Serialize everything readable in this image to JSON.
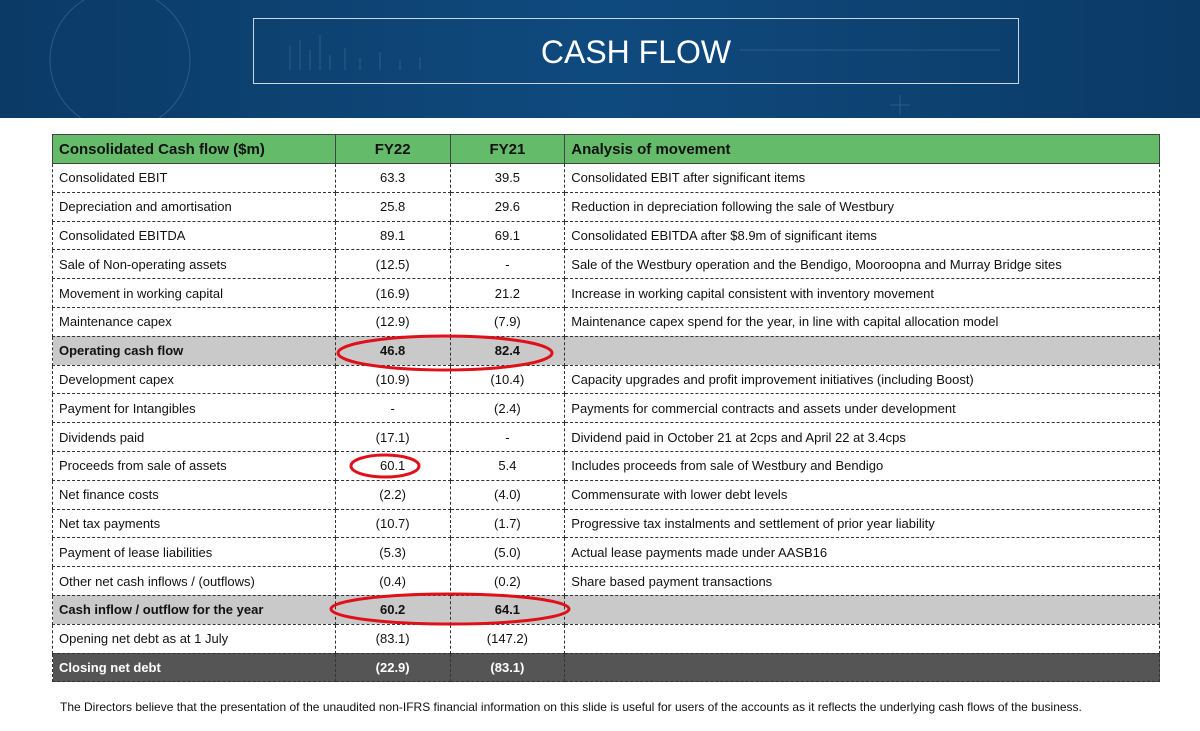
{
  "header": {
    "title": "CASH FLOW"
  },
  "table": {
    "columns": [
      "Consolidated Cash flow ($m)",
      "FY22",
      "FY21",
      "Analysis of movement"
    ],
    "rows": [
      [
        "Consolidated EBIT",
        "63.3",
        "39.5",
        "Consolidated EBIT after significant items"
      ],
      [
        "Depreciation and amortisation",
        "25.8",
        "29.6",
        "Reduction in depreciation following the sale of Westbury"
      ],
      [
        "Consolidated EBITDA",
        "89.1",
        "69.1",
        "Consolidated EBITDA after $8.9m of significant items"
      ],
      [
        "Sale of Non-operating assets",
        "(12.5)",
        "-",
        "Sale of the Westbury operation and the Bendigo, Mooroopna and Murray Bridge sites"
      ],
      [
        "Movement in working capital",
        "(16.9)",
        "21.2",
        "Increase in working capital consistent with inventory movement"
      ],
      [
        "Maintenance capex",
        "(12.9)",
        "(7.9)",
        "Maintenance capex spend for the year, in line with capital allocation model"
      ],
      [
        "Operating cash flow",
        "46.8",
        "82.4"
      ],
      [
        "Development capex",
        "(10.9)",
        "(10.4)",
        "Capacity upgrades and profit improvement initiatives (including Boost)"
      ],
      [
        "Payment for Intangibles",
        "-",
        "(2.4)",
        "Payments for commercial contracts and assets under development"
      ],
      [
        "Dividends paid",
        "(17.1)",
        "-",
        "Dividend paid in October 21 at 2cps and April 22 at 3.4cps"
      ],
      [
        "Proceeds from sale of assets",
        "60.1",
        "5.4",
        "Includes proceeds from sale of Westbury and Bendigo"
      ],
      [
        "Net finance costs",
        "(2.2)",
        "(4.0)",
        "Commensurate with lower debt levels"
      ],
      [
        "Net tax payments",
        "(10.7)",
        "(1.7)",
        "Progressive tax instalments and settlement of prior year liability"
      ],
      [
        "Payment of lease liabilities",
        "(5.3)",
        "(5.0)",
        "Actual lease payments made under AASB16"
      ],
      [
        "Other net cash inflows / (outflows)",
        "(0.4)",
        "(0.2)",
        "Share based payment transactions"
      ],
      [
        "Cash inflow / outflow for the year",
        "60.2",
        "64.1"
      ],
      [
        "Opening net debt as at 1 July",
        "(83.1)",
        "(147.2)"
      ],
      [
        "Closing net debt",
        "(22.9)",
        "(83.1)"
      ]
    ]
  },
  "footnote": "The Directors believe that the presentation of the unaudited non-IFRS financial information on this slide is useful for users of the accounts as it reflects the underlying cash flows of the business."
}
